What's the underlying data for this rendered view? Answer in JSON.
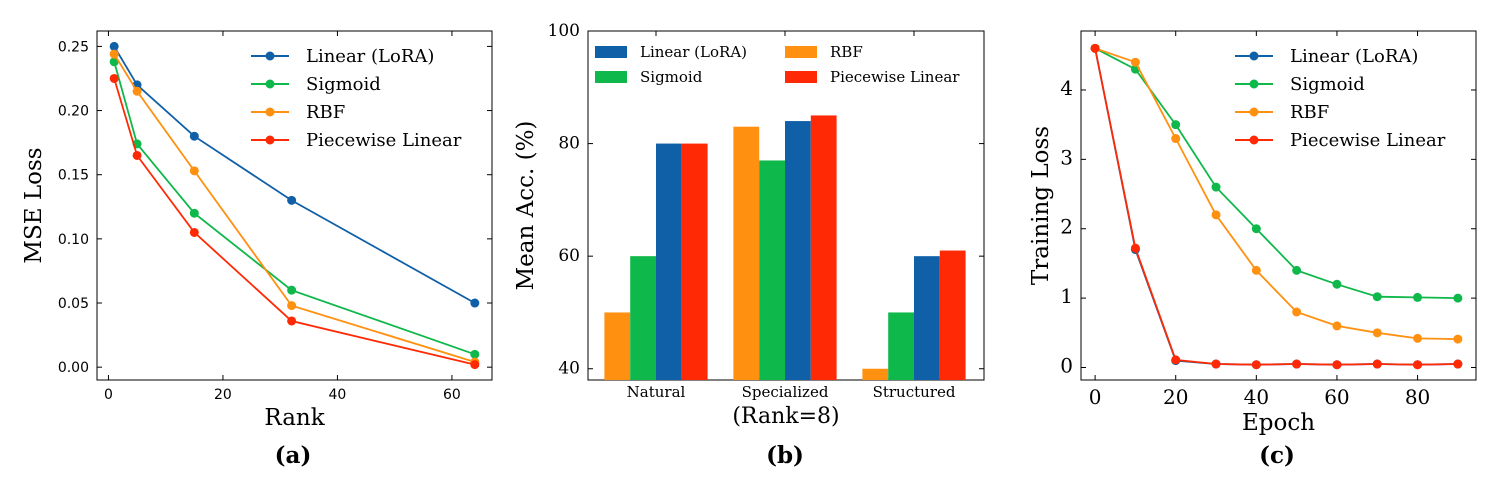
{
  "colors": {
    "linear": "#1060a8",
    "sigmoid": "#0fb84a",
    "rbf": "#ff9010",
    "piecewise": "#ff2a05"
  },
  "chart_data": [
    {
      "type": "line",
      "caption": "(a)",
      "xlabel": "Rank",
      "ylabel": "MSE Loss",
      "xlim": [
        -2,
        67
      ],
      "ylim": [
        -0.01,
        0.262
      ],
      "xticks": [
        0,
        20,
        40,
        60
      ],
      "yticks": [
        0.0,
        0.05,
        0.1,
        0.15,
        0.2,
        0.25
      ],
      "ytick_labels": [
        "0.00",
        "0.05",
        "0.10",
        "0.15",
        "0.20",
        "0.25"
      ],
      "xtick_labels": [
        "0",
        "20",
        "40",
        "60"
      ],
      "legend_position": "top-right",
      "grid": false,
      "series": [
        {
          "name": "Linear (LoRA)",
          "color_key": "linear",
          "x": [
            1,
            5,
            15,
            32,
            64
          ],
          "y": [
            0.25,
            0.22,
            0.18,
            0.13,
            0.05
          ]
        },
        {
          "name": "Sigmoid",
          "color_key": "sigmoid",
          "x": [
            1,
            5,
            15,
            32,
            64
          ],
          "y": [
            0.238,
            0.174,
            0.12,
            0.06,
            0.01
          ]
        },
        {
          "name": "RBF",
          "color_key": "rbf",
          "x": [
            1,
            5,
            15,
            32,
            64
          ],
          "y": [
            0.244,
            0.215,
            0.153,
            0.048,
            0.004
          ]
        },
        {
          "name": "Piecewise Linear",
          "color_key": "piecewise",
          "x": [
            1,
            5,
            15,
            32,
            64
          ],
          "y": [
            0.225,
            0.165,
            0.105,
            0.036,
            0.002
          ]
        }
      ]
    },
    {
      "type": "bar",
      "caption": "(b)",
      "xlabel": "(Rank=8)",
      "ylabel": "Mean Acc. (%)",
      "ylim": [
        38,
        100
      ],
      "yticks": [
        40,
        60,
        80,
        100
      ],
      "ytick_labels": [
        "40",
        "60",
        "80",
        "100"
      ],
      "categories": [
        "Natural",
        "Specialized",
        "Structured"
      ],
      "legend_position": "top, two columns",
      "legend_order": [
        "Linear (LoRA)",
        "Sigmoid",
        "RBF",
        "Piecewise Linear"
      ],
      "grid": false,
      "series": [
        {
          "name": "RBF",
          "color_key": "rbf",
          "values": [
            50,
            83,
            40
          ]
        },
        {
          "name": "Sigmoid",
          "color_key": "sigmoid",
          "values": [
            60,
            77,
            50
          ]
        },
        {
          "name": "Linear (LoRA)",
          "color_key": "linear",
          "values": [
            80,
            84,
            60
          ]
        },
        {
          "name": "Piecewise Linear",
          "color_key": "piecewise",
          "values": [
            80,
            85,
            61
          ]
        }
      ]
    },
    {
      "type": "line",
      "caption": "(c)",
      "xlabel": "Epoch",
      "ylabel": "Training Loss",
      "xlim": [
        -3.5,
        94.5
      ],
      "ylim": [
        -0.18,
        4.85
      ],
      "xticks": [
        0,
        20,
        40,
        60,
        80
      ],
      "xtick_labels": [
        "0",
        "20",
        "40",
        "60",
        "80"
      ],
      "yticks": [
        0,
        1,
        2,
        3,
        4
      ],
      "ytick_labels": [
        "0",
        "1",
        "2",
        "3",
        "4"
      ],
      "legend_position": "top-right",
      "grid": false,
      "series": [
        {
          "name": "Linear (LoRA)",
          "color_key": "linear",
          "x": [
            0,
            10,
            20,
            30,
            40,
            50,
            60,
            70,
            80,
            90
          ],
          "y": [
            4.6,
            1.7,
            0.1,
            0.05,
            0.04,
            0.05,
            0.04,
            0.05,
            0.04,
            0.05
          ]
        },
        {
          "name": "Sigmoid",
          "color_key": "sigmoid",
          "x": [
            0,
            10,
            20,
            30,
            40,
            50,
            60,
            70,
            80,
            90
          ],
          "y": [
            4.6,
            4.3,
            3.5,
            2.6,
            2.0,
            1.4,
            1.2,
            1.02,
            1.01,
            1.0
          ]
        },
        {
          "name": "RBF",
          "color_key": "rbf",
          "x": [
            0,
            10,
            20,
            30,
            40,
            50,
            60,
            70,
            80,
            90
          ],
          "y": [
            4.6,
            4.4,
            3.3,
            2.2,
            1.4,
            0.8,
            0.6,
            0.5,
            0.42,
            0.41
          ]
        },
        {
          "name": "Piecewise Linear",
          "color_key": "piecewise",
          "x": [
            0,
            10,
            20,
            30,
            40,
            50,
            60,
            70,
            80,
            90
          ],
          "y": [
            4.6,
            1.72,
            0.11,
            0.05,
            0.04,
            0.05,
            0.04,
            0.05,
            0.04,
            0.05
          ]
        }
      ]
    }
  ]
}
